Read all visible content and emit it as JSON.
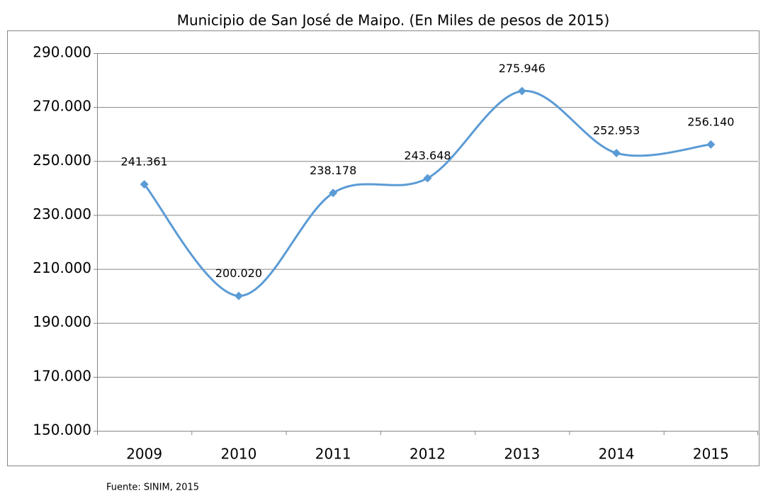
{
  "chart_data": {
    "type": "line",
    "title": "Municipio de San José de Maipo. (En Miles de pesos de 2015)",
    "categories": [
      "2009",
      "2010",
      "2011",
      "2012",
      "2013",
      "2014",
      "2015"
    ],
    "series": [
      {
        "name": "Municipio de San José de Maipo",
        "color": "#5b9bd5",
        "values": [
          241361,
          200020,
          238178,
          243648,
          275946,
          252953,
          256140
        ],
        "value_labels": [
          "241.361",
          "200.020",
          "238.178",
          "243.648",
          "275.946",
          "252.953",
          "256.140"
        ]
      }
    ],
    "ylim": [
      150000,
      290000
    ],
    "yticks": [
      {
        "value": 150000,
        "label": "150.000"
      },
      {
        "value": 170000,
        "label": "170.000"
      },
      {
        "value": 190000,
        "label": "190.000"
      },
      {
        "value": 210000,
        "label": "210.000"
      },
      {
        "value": 230000,
        "label": "230.000"
      },
      {
        "value": 250000,
        "label": "250.000"
      },
      {
        "value": 270000,
        "label": "270.000"
      },
      {
        "value": 290000,
        "label": "290.000"
      }
    ],
    "grid": true,
    "smooth": true
  },
  "source": "Fuente: SINIM, 2015"
}
